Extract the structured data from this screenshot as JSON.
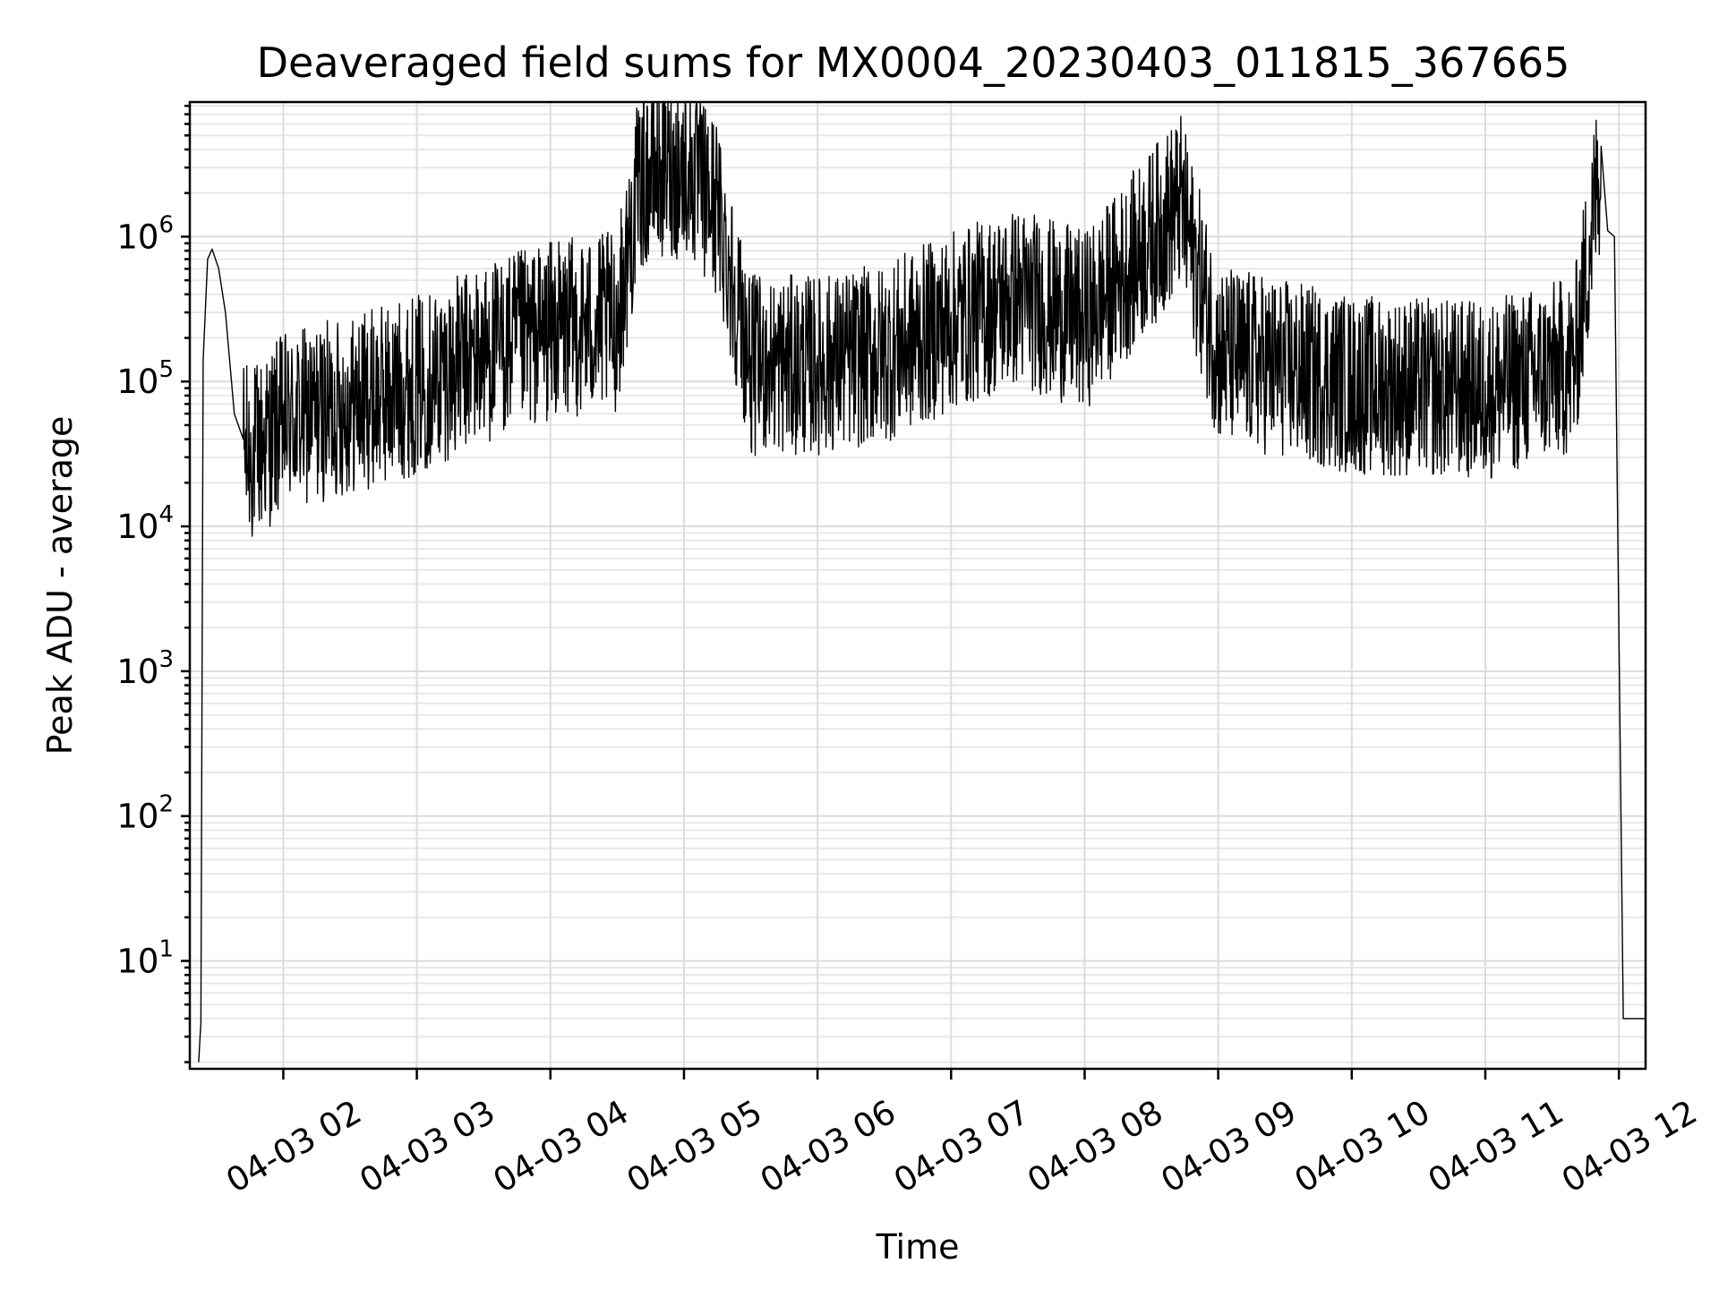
{
  "chart_data": {
    "type": "line",
    "title": "Deaveraged field sums for MX0004_20230403_011815_367665",
    "xlabel": "Time",
    "ylabel": "Peak ADU - average",
    "y_scale": "log",
    "ylim": [
      1.8,
      8500000
    ],
    "xlim": [
      "2023-04-03 01:18",
      "2023-04-03 12:12"
    ],
    "x_ticks": [
      {
        "label": "04-03 02",
        "time": "2023-04-03 02:00"
      },
      {
        "label": "04-03 03",
        "time": "2023-04-03 03:00"
      },
      {
        "label": "04-03 04",
        "time": "2023-04-03 04:00"
      },
      {
        "label": "04-03 05",
        "time": "2023-04-03 05:00"
      },
      {
        "label": "04-03 06",
        "time": "2023-04-03 06:00"
      },
      {
        "label": "04-03 07",
        "time": "2023-04-03 07:00"
      },
      {
        "label": "04-03 08",
        "time": "2023-04-03 08:00"
      },
      {
        "label": "04-03 09",
        "time": "2023-04-03 09:00"
      },
      {
        "label": "04-03 10",
        "time": "2023-04-03 10:00"
      },
      {
        "label": "04-03 11",
        "time": "2023-04-03 11:00"
      },
      {
        "label": "04-03 12",
        "time": "2023-04-03 12:00"
      }
    ],
    "y_ticks": [
      {
        "base": "10",
        "exp": "1",
        "value": 10
      },
      {
        "base": "10",
        "exp": "2",
        "value": 100
      },
      {
        "base": "10",
        "exp": "3",
        "value": 1000
      },
      {
        "base": "10",
        "exp": "4",
        "value": 10000
      },
      {
        "base": "10",
        "exp": "5",
        "value": 100000
      },
      {
        "base": "10",
        "exp": "6",
        "value": 1000000
      }
    ],
    "grid": true,
    "line_color": "#000000",
    "series": [
      {
        "points": [
          [
            "2023-04-03 01:22",
            2
          ],
          [
            "2023-04-03 01:23",
            3.8
          ],
          [
            "2023-04-03 01:24",
            140000
          ],
          [
            "2023-04-03 01:26",
            700000
          ],
          [
            "2023-04-03 01:28",
            820000
          ],
          [
            "2023-04-03 01:31",
            600000
          ],
          [
            "2023-04-03 01:34",
            300000
          ],
          [
            "2023-04-03 01:38",
            60000
          ],
          [
            "2023-04-03 01:42",
            40000
          ],
          [
            "2023-04-03 01:45",
            35000
          ],
          [
            "2023-04-03 02:00",
            60000
          ],
          [
            "2023-04-03 02:30",
            80000
          ],
          [
            "2023-04-03 03:00",
            110000
          ],
          [
            "2023-04-03 03:30",
            180000
          ],
          [
            "2023-04-03 04:00",
            260000
          ],
          [
            "2023-04-03 04:30",
            300000
          ],
          [
            "2023-04-03 04:40",
            2800000
          ],
          [
            "2023-04-03 04:50",
            3400000
          ],
          [
            "2023-04-03 05:02",
            3300000
          ],
          [
            "2023-04-03 05:15",
            1800000
          ],
          [
            "2023-04-03 05:30",
            150000
          ],
          [
            "2023-04-03 06:00",
            150000
          ],
          [
            "2023-04-03 06:30",
            180000
          ],
          [
            "2023-04-03 07:00",
            300000
          ],
          [
            "2023-04-03 07:30",
            450000
          ],
          [
            "2023-04-03 08:00",
            300000
          ],
          [
            "2023-04-03 08:43",
            2000000
          ],
          [
            "2023-04-03 09:00",
            180000
          ],
          [
            "2023-04-03 10:00",
            110000
          ],
          [
            "2023-04-03 11:00",
            100000
          ],
          [
            "2023-04-03 11:40",
            150000
          ],
          [
            "2023-04-03 11:52",
            4200000
          ],
          [
            "2023-04-03 11:55",
            1100000
          ],
          [
            "2023-04-03 11:58",
            1000000
          ],
          [
            "2023-04-03 12:02",
            4
          ],
          [
            "2023-04-03 12:12",
            4
          ]
        ]
      }
    ]
  }
}
